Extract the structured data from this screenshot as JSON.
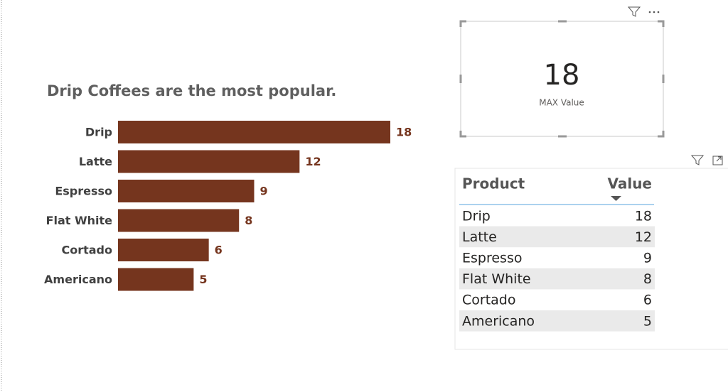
{
  "chart_data": {
    "type": "bar",
    "orientation": "horizontal",
    "title": "Drip Coffees are the most popular.",
    "categories": [
      "Drip",
      "Latte",
      "Espresso",
      "Flat White",
      "Cortado",
      "Americano"
    ],
    "values": [
      18,
      12,
      9,
      8,
      6,
      5
    ],
    "color": "#75351e",
    "xlim": [
      0,
      18
    ]
  },
  "card": {
    "value": 18,
    "label": "MAX Value"
  },
  "table": {
    "headers": [
      "Product",
      "Value"
    ],
    "rows": [
      [
        "Drip",
        18
      ],
      [
        "Latte",
        12
      ],
      [
        "Espresso",
        9
      ],
      [
        "Flat White",
        8
      ],
      [
        "Cortado",
        6
      ],
      [
        "Americano",
        5
      ]
    ]
  }
}
